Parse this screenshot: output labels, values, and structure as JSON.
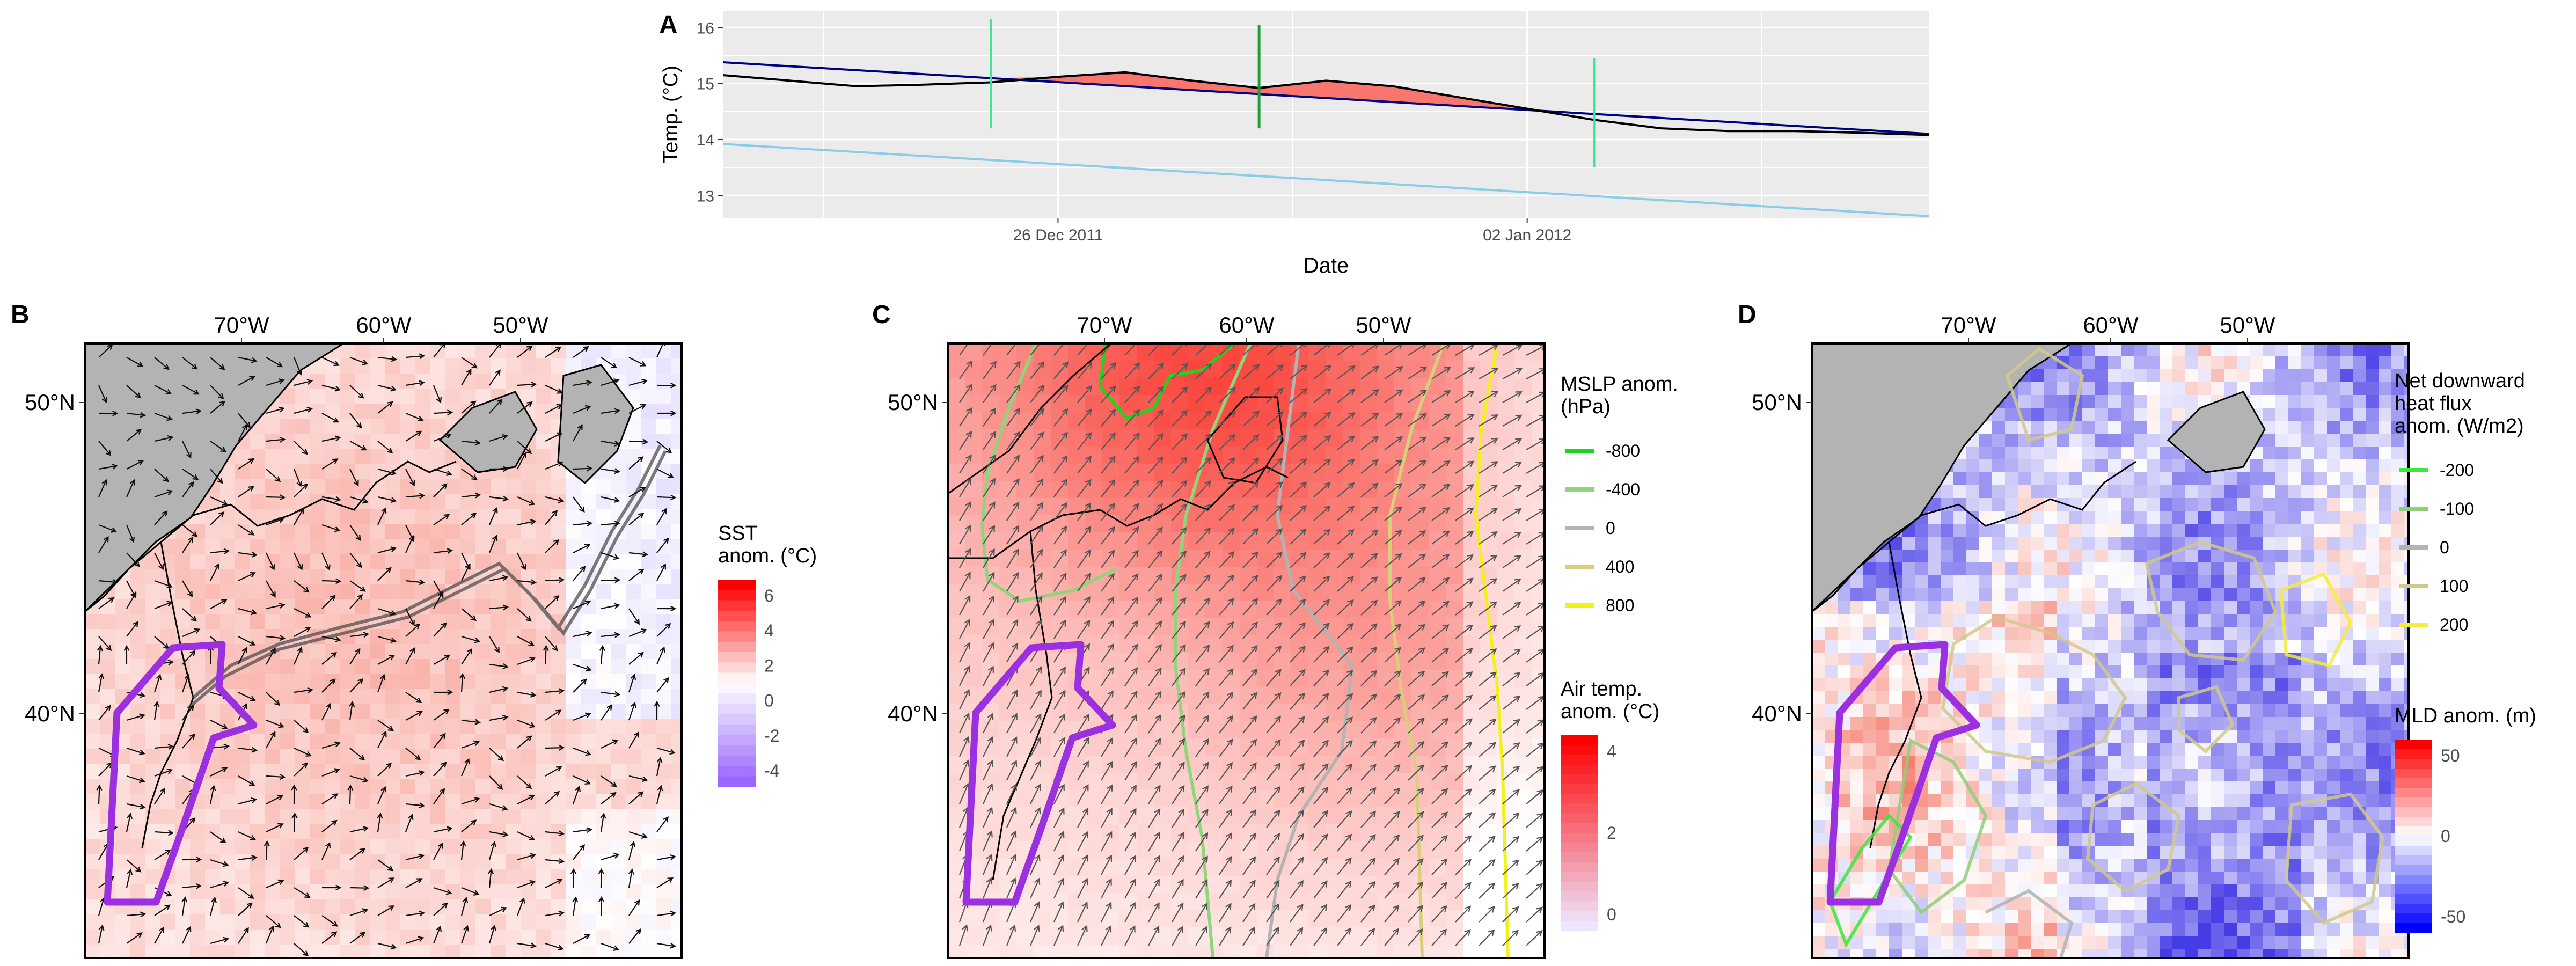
{
  "panels": {
    "A": {
      "tag": "A",
      "ylabel": "Temp. (°C)",
      "xlabel": "Date",
      "x_ticks": [
        "26 Dec 2011",
        "02 Jan 2012"
      ],
      "y_ticks": [
        "13",
        "14",
        "15",
        "16"
      ]
    },
    "B": {
      "tag": "B",
      "lon_ticks": [
        "70°W",
        "60°W",
        "50°W"
      ],
      "lat_ticks": [
        "50°N",
        "40°N"
      ],
      "legend": {
        "title_lines": [
          "SST",
          "anom. (°C)"
        ],
        "labels": [
          "6",
          "4",
          "2",
          "0",
          "-2",
          "-4"
        ]
      }
    },
    "C": {
      "tag": "C",
      "lon_ticks": [
        "70°W",
        "60°W",
        "50°W"
      ],
      "lat_ticks": [
        "50°N",
        "40°N"
      ],
      "legend_lines": {
        "title_lines": [
          "MSLP anom.",
          "(hPa)"
        ],
        "items": [
          {
            "label": "-800",
            "color": "#1fd41f"
          },
          {
            "label": "-400",
            "color": "#8fd67a"
          },
          {
            "label": "0",
            "color": "#b3b3b3"
          },
          {
            "label": "400",
            "color": "#d9cf7a"
          },
          {
            "label": "800",
            "color": "#f2f21a"
          }
        ]
      },
      "legend_fill": {
        "title_lines": [
          "Air temp.",
          "anom. (°C)"
        ],
        "labels": [
          "4",
          "2",
          "0"
        ]
      }
    },
    "D": {
      "tag": "D",
      "lon_ticks": [
        "70°W",
        "60°W",
        "50°W"
      ],
      "lat_ticks": [
        "50°N",
        "40°N"
      ],
      "legend_lines": {
        "title_lines": [
          "Net downward",
          "heat flux",
          "anom. (W/m2)"
        ],
        "items": [
          {
            "label": "-200",
            "color": "#3ae83a"
          },
          {
            "label": "-100",
            "color": "#8fcf7a"
          },
          {
            "label": "0",
            "color": "#b3b3b3"
          },
          {
            "label": "100",
            "color": "#d1c98a"
          },
          {
            "label": "200",
            "color": "#f2ee3a"
          }
        ]
      },
      "legend_fill": {
        "title_lines": [
          "MLD anom. (m)"
        ],
        "labels": [
          "50",
          "0",
          "-50"
        ]
      }
    }
  },
  "colors": {
    "climatology_line": "#000080",
    "threshold_line": "#87ceeb",
    "temperature_line": "#000000",
    "heatwave_fill": "#f8766d",
    "event_start_marker": "#3ae89a",
    "event_peak_marker": "#1e9e3a",
    "event_end_marker": "#3ae89a",
    "region_polygon": "#9b30e0",
    "land": "#b3b3b3",
    "panel_background": "#ebebeb"
  },
  "chart_data": [
    {
      "type": "line",
      "panel": "A",
      "xlabel": "Date",
      "ylabel": "Temp. (°C)",
      "xlim": [
        "2011-12-21",
        "2012-01-08"
      ],
      "ylim": [
        12.6,
        16.3
      ],
      "x_ticks": [
        "2011-12-26",
        "2012-01-02"
      ],
      "y_ticks": [
        13,
        14,
        15,
        16
      ],
      "grid": true,
      "series": [
        {
          "role": "temperature",
          "x": [
            "2011-12-21",
            "2011-12-22",
            "2011-12-23",
            "2011-12-24",
            "2011-12-25",
            "2011-12-26",
            "2011-12-27",
            "2011-12-28",
            "2011-12-29",
            "2011-12-30",
            "2011-12-31",
            "2012-01-01",
            "2012-01-02",
            "2012-01-03",
            "2012-01-04",
            "2012-01-05",
            "2012-01-06",
            "2012-01-07",
            "2012-01-08"
          ],
          "y": [
            15.15,
            15.05,
            14.95,
            14.98,
            15.02,
            15.12,
            15.2,
            15.05,
            14.92,
            15.05,
            14.95,
            14.75,
            14.55,
            14.35,
            14.2,
            14.15,
            14.15,
            14.12,
            14.08
          ]
        },
        {
          "role": "climatology",
          "x": [
            "2011-12-21",
            "2012-01-08"
          ],
          "y": [
            15.38,
            14.1
          ]
        },
        {
          "role": "threshold",
          "x": [
            "2011-12-21",
            "2012-01-08"
          ],
          "y": [
            13.92,
            12.63
          ]
        }
      ],
      "event_markers": [
        {
          "role": "start",
          "x": "2011-12-25",
          "ymin": 14.2,
          "ymax": 16.15
        },
        {
          "role": "peak",
          "x": "2011-12-29",
          "ymin": 14.2,
          "ymax": 16.05
        },
        {
          "role": "end",
          "x": "2012-01-03",
          "ymin": 13.5,
          "ymax": 15.45
        }
      ]
    },
    {
      "type": "heatmap",
      "panel": "B",
      "variable": "SST anomaly",
      "units": "°C",
      "color_range": [
        -4.5,
        6.5
      ],
      "palette": [
        "#9966ff",
        "#ffffff",
        "#ff0000"
      ],
      "lon_range": [
        -78,
        -41
      ],
      "lat_range": [
        32,
        52
      ]
    },
    {
      "type": "heatmap",
      "panel": "C",
      "variable": "Air temp. anomaly",
      "units": "°C",
      "color_range": [
        -1,
        6
      ],
      "contour_variable": "MSLP anomaly",
      "contour_levels": [
        -800,
        -400,
        0,
        400,
        800
      ],
      "lon_range": [
        -78,
        -41
      ],
      "lat_range": [
        32,
        52
      ]
    },
    {
      "type": "heatmap",
      "panel": "D",
      "variable": "MLD anomaly",
      "units": "m",
      "color_range": [
        -80,
        80
      ],
      "contour_variable": "Net downward heat flux anomaly",
      "contour_levels": [
        -200,
        -100,
        0,
        100,
        200
      ],
      "lon_range": [
        -78,
        -41
      ],
      "lat_range": [
        32,
        52
      ]
    }
  ]
}
